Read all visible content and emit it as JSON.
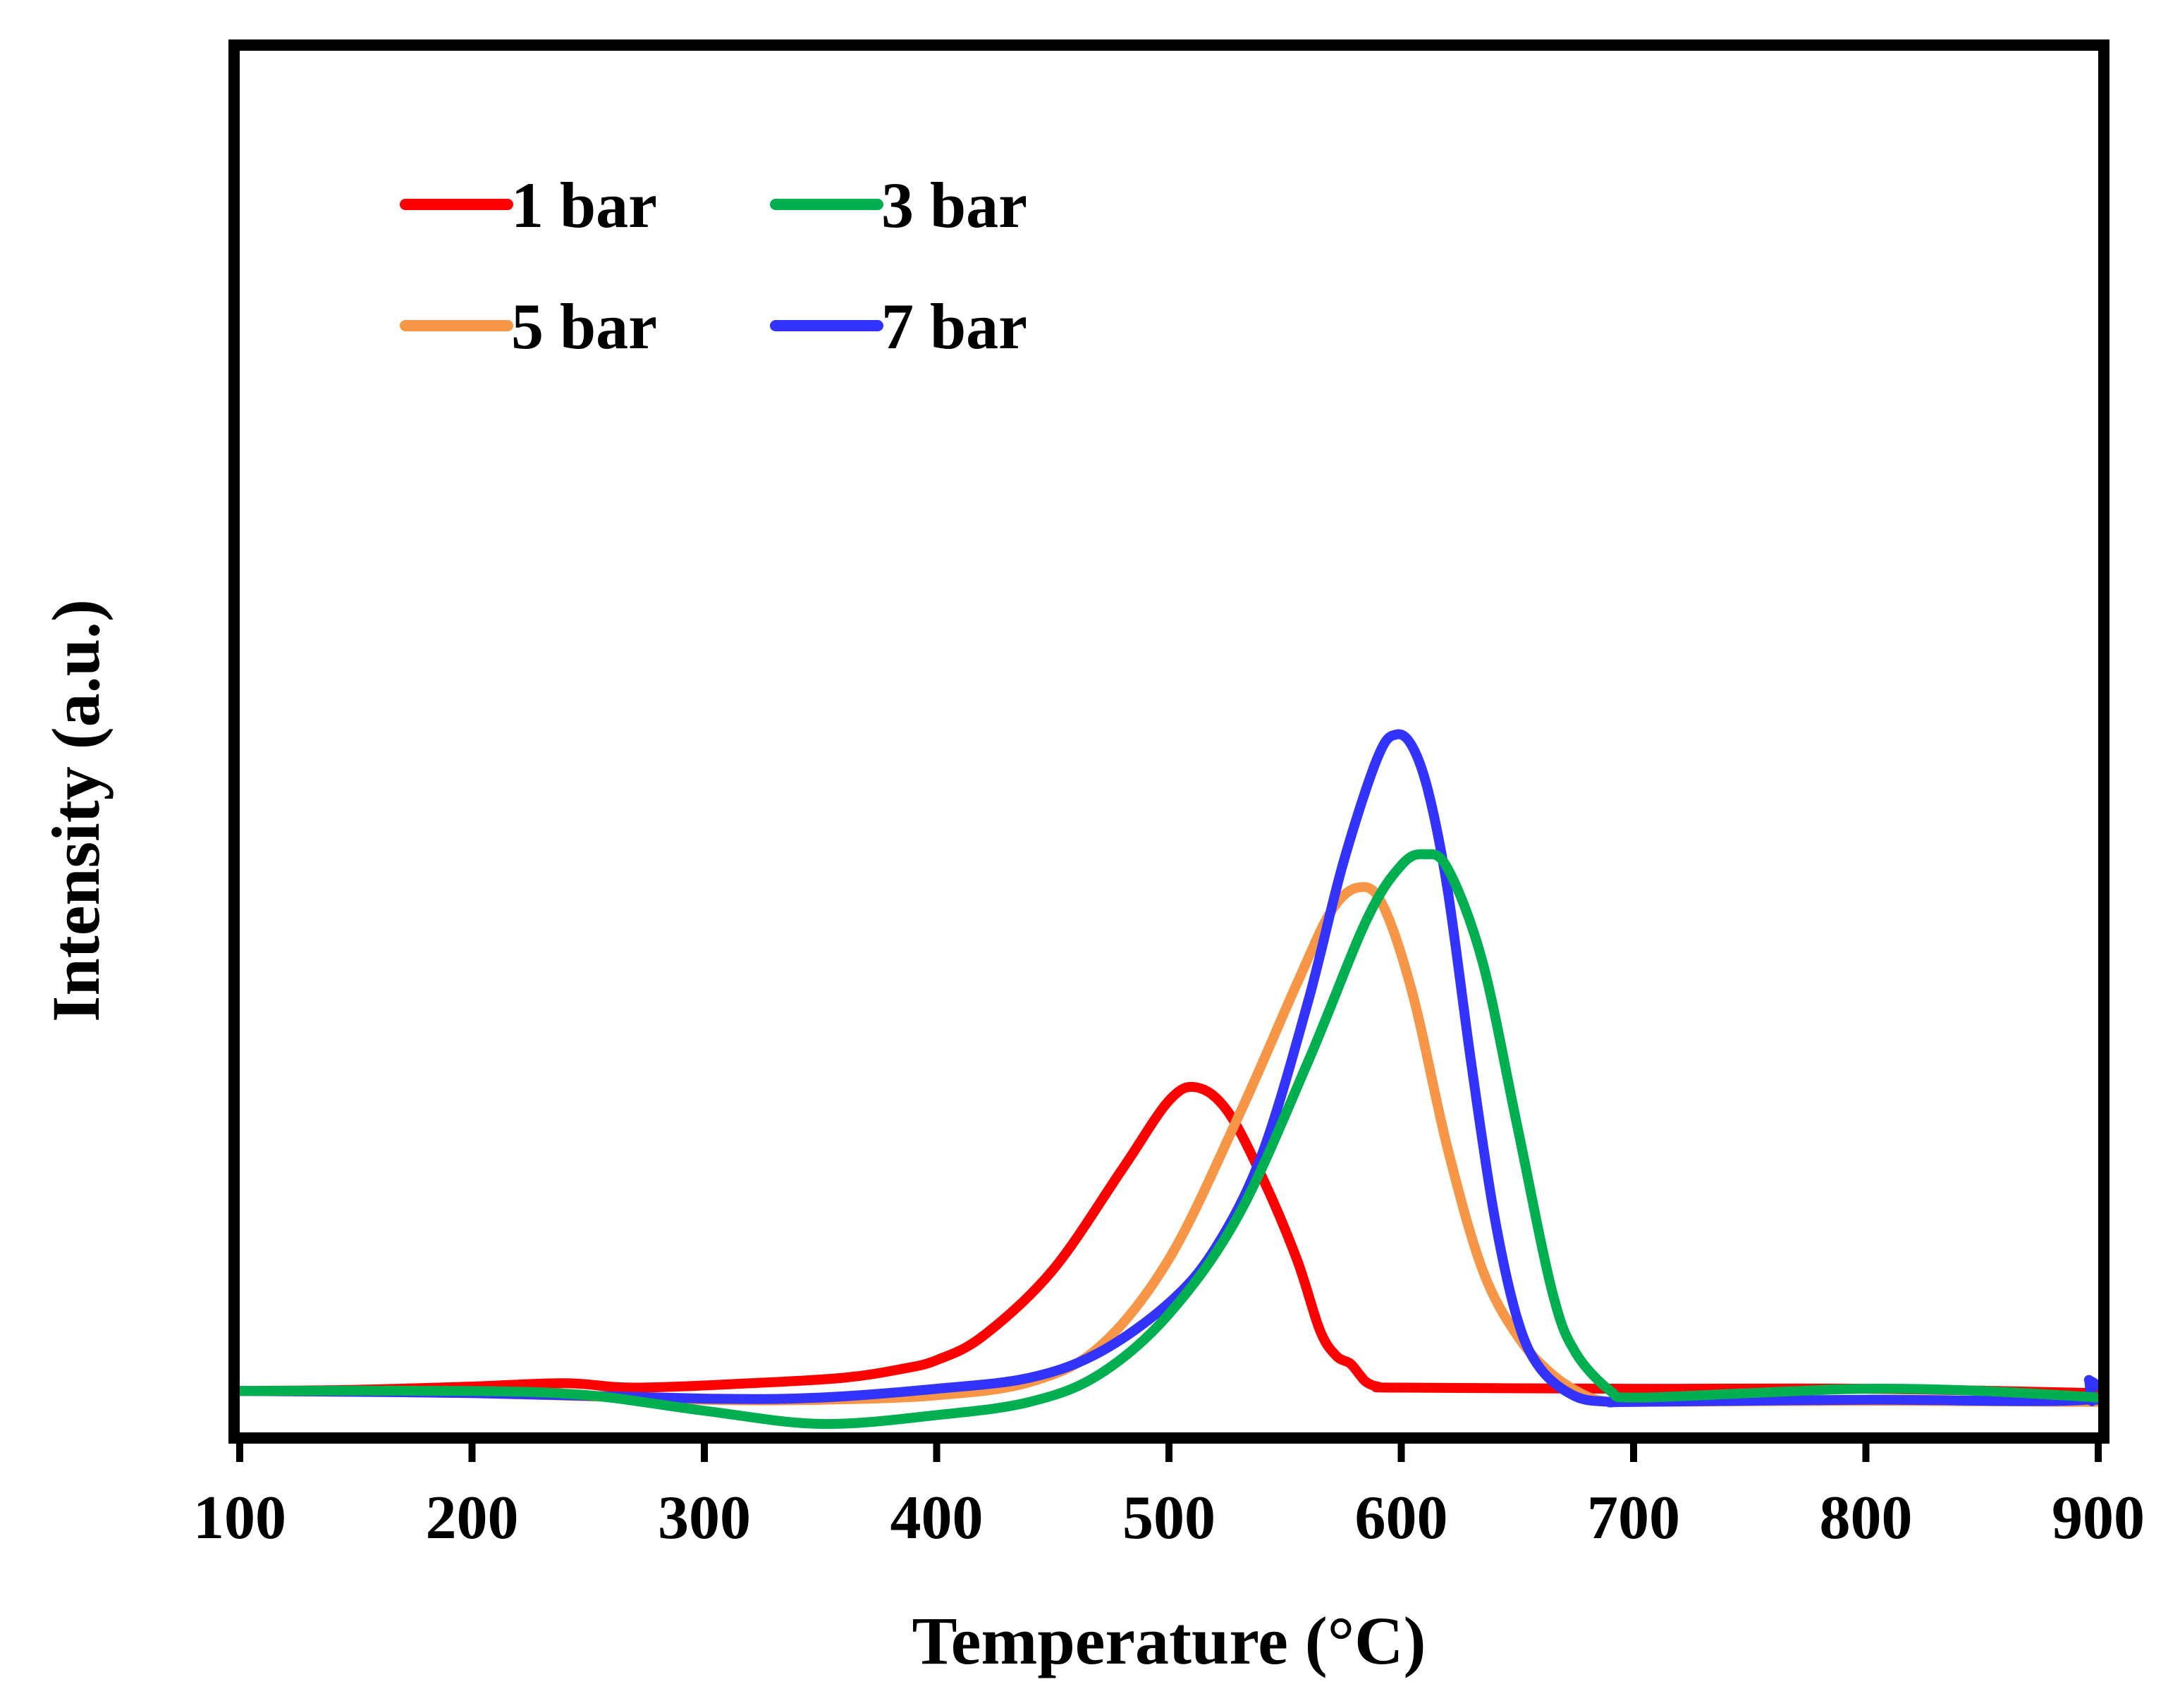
{
  "chart_data": {
    "type": "line",
    "title": "",
    "xlabel": "Temperature  (°C)",
    "ylabel": "Intensity (a.u.)",
    "xlim": [
      100,
      900
    ],
    "ylim": [
      0,
      1
    ],
    "xticks": [
      100,
      200,
      300,
      400,
      500,
      600,
      700,
      800,
      900
    ],
    "xtick_labels": [
      "100",
      "200",
      "300",
      "400",
      "500",
      "600",
      "700",
      "800",
      "900"
    ],
    "y_tick_labels": false,
    "grid": false,
    "legend_position": "top-left",
    "series": [
      {
        "name": "1 bar",
        "label": "1 bar",
        "color": "#ff0000",
        "x": [
          100,
          150,
          200,
          240,
          270,
          320,
          360,
          385,
          400,
          420,
          450,
          480,
          500,
          512,
          525,
          540,
          555,
          565,
          572,
          578,
          582,
          585,
          590,
          600,
          700,
          800,
          900
        ],
        "y": [
          0.03,
          0.031,
          0.034,
          0.037,
          0.033,
          0.037,
          0.042,
          0.05,
          0.058,
          0.08,
          0.14,
          0.232,
          0.294,
          0.306,
          0.285,
          0.225,
          0.15,
          0.085,
          0.062,
          0.055,
          0.045,
          0.038,
          0.034,
          0.033,
          0.032,
          0.032,
          0.028
        ]
      },
      {
        "name": "3 bar",
        "label": "3 bar",
        "color": "#00b050",
        "x": [
          100,
          200,
          250,
          300,
          350,
          400,
          440,
          470,
          500,
          530,
          560,
          585,
          600,
          610,
          620,
          635,
          650,
          665,
          675,
          690,
          700,
          750,
          800,
          850,
          900
        ],
        "y": [
          0.03,
          0.03,
          0.026,
          0.012,
          0.0,
          0.008,
          0.02,
          0.045,
          0.1,
          0.19,
          0.33,
          0.458,
          0.508,
          0.518,
          0.505,
          0.42,
          0.27,
          0.12,
          0.065,
          0.03,
          0.024,
          0.028,
          0.032,
          0.03,
          0.024
        ]
      },
      {
        "name": "5 bar",
        "label": "5 bar",
        "color": "#f79646",
        "x": [
          100,
          200,
          300,
          350,
          400,
          440,
          470,
          500,
          530,
          555,
          570,
          582,
          592,
          605,
          620,
          635,
          650,
          665,
          680,
          690,
          700,
          800,
          900
        ],
        "y": [
          0.03,
          0.028,
          0.022,
          0.022,
          0.026,
          0.038,
          0.07,
          0.15,
          0.28,
          0.4,
          0.467,
          0.488,
          0.472,
          0.39,
          0.25,
          0.14,
          0.08,
          0.045,
          0.025,
          0.02,
          0.02,
          0.021,
          0.02
        ]
      },
      {
        "name": "7 bar",
        "label": "7 bar",
        "color": "#3333ff",
        "x": [
          100,
          200,
          300,
          350,
          400,
          440,
          470,
          500,
          520,
          540,
          560,
          575,
          590,
          598,
          605,
          612,
          620,
          630,
          640,
          650,
          660,
          675,
          690,
          700,
          800,
          895,
          896,
          897,
          898,
          900
        ],
        "y": [
          0.03,
          0.028,
          0.023,
          0.024,
          0.032,
          0.042,
          0.065,
          0.11,
          0.16,
          0.245,
          0.385,
          0.51,
          0.607,
          0.627,
          0.615,
          0.572,
          0.485,
          0.33,
          0.19,
          0.095,
          0.05,
          0.025,
          0.02,
          0.02,
          0.022,
          0.022,
          0.04,
          0.022,
          0.022,
          0.022
        ]
      }
    ]
  }
}
